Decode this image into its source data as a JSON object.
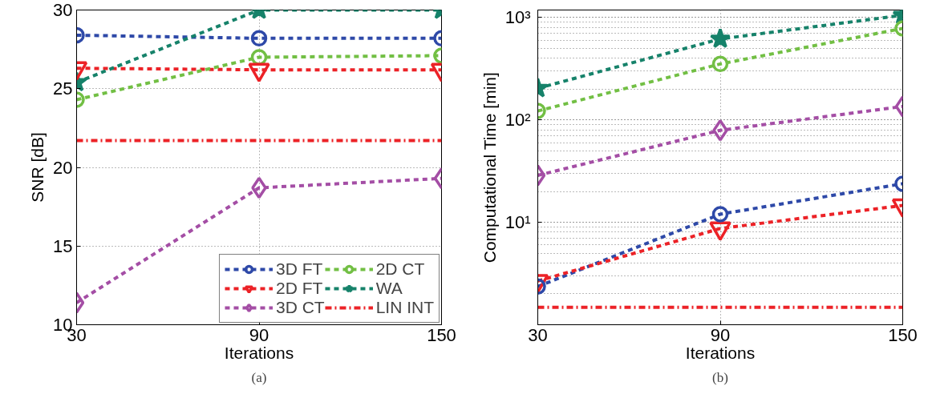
{
  "chart_data": [
    {
      "type": "line",
      "xlabel": "Iterations",
      "ylabel": "SNR [dB]",
      "x": [
        30,
        90,
        150
      ],
      "xlim": [
        30,
        150
      ],
      "xticks": [
        30,
        90,
        150
      ],
      "ylim": [
        10,
        30
      ],
      "yticks": [
        10,
        15,
        20,
        25,
        30
      ],
      "grid": true,
      "legend": "bottom right",
      "line_style": "dashed",
      "annotations": [
        "(a)"
      ],
      "series": [
        {
          "name": "3D FT",
          "color": "#2e49a8",
          "marker": "circle",
          "values": [
            28.4,
            28.2,
            28.2
          ]
        },
        {
          "name": "2D FT",
          "color": "#ec2227",
          "marker": "triangle",
          "values": [
            26.3,
            26.2,
            26.2
          ]
        },
        {
          "name": "3D CT",
          "color": "#a44ea5",
          "marker": "diamond",
          "values": [
            11.4,
            18.7,
            19.3
          ]
        },
        {
          "name": "2D CT",
          "color": "#72bf44",
          "marker": "circle",
          "values": [
            24.3,
            27.0,
            27.1
          ]
        },
        {
          "name": "WA",
          "color": "#16826a",
          "marker": "star",
          "values": [
            25.4,
            30.0,
            30.0
          ]
        },
        {
          "name": "LIN INT",
          "color": "#ec2227",
          "marker": "none",
          "line_style": "dashdot",
          "values": [
            21.7,
            21.7,
            21.7
          ]
        }
      ]
    },
    {
      "type": "line",
      "xlabel": "Iterations",
      "ylabel": "Computational Time [min]",
      "x": [
        30,
        90,
        150
      ],
      "xlim": [
        30,
        150
      ],
      "xticks": [
        30,
        90,
        150
      ],
      "log": true,
      "ylim": [
        1,
        1180
      ],
      "yticks": [
        {
          "value": 10,
          "label": "10¹"
        },
        {
          "value": 100,
          "label": "10²"
        },
        {
          "value": 1000,
          "label": "10³"
        }
      ],
      "grid": true,
      "line_style": "dashed",
      "annotations": [
        "(b)"
      ],
      "series": [
        {
          "color": "#2e49a8",
          "marker": "circle",
          "values": [
            2.36,
            12,
            23.8
          ]
        },
        {
          "color": "#ec2227",
          "marker": "triangle",
          "values": [
            2.67,
            8.7,
            14.6
          ]
        },
        {
          "color": "#a44ea5",
          "marker": "diamond",
          "values": [
            28.7,
            79,
            135
          ]
        },
        {
          "color": "#72bf44",
          "marker": "circle",
          "values": [
            122,
            351,
            780
          ]
        },
        {
          "color": "#16826a",
          "marker": "star",
          "values": [
            203,
            616,
            1050
          ]
        },
        {
          "color": "#ec2227",
          "marker": "none",
          "line_style": "dashdot",
          "values": [
            1.48,
            1.48,
            1.48
          ]
        }
      ]
    }
  ]
}
